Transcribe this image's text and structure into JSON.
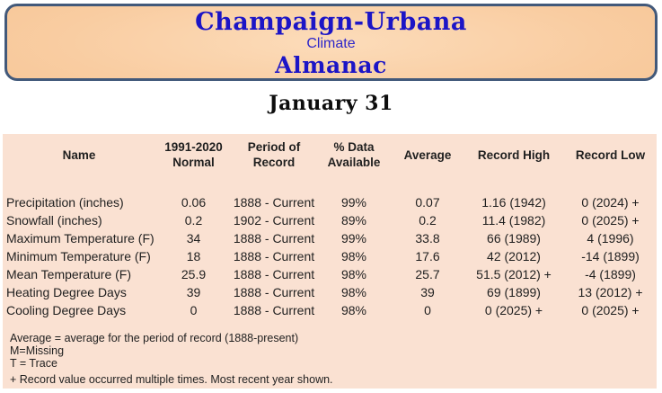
{
  "banner": {
    "title": "Champaign-Urbana",
    "subtitle": "Climate",
    "title2": "Almanac"
  },
  "date_heading": "January 31",
  "table": {
    "columns": [
      "Name",
      "1991-2020\nNormal",
      "Period of\nRecord",
      "% Data\nAvailable",
      "Average",
      "Record High",
      "Record Low"
    ],
    "rows": [
      {
        "name": "Precipitation (inches)",
        "normal": "0.06",
        "period": "1888 - Current",
        "pct": "99%",
        "avg": "0.07",
        "high": "1.16 (1942)",
        "low": "0 (2024) +"
      },
      {
        "name": "Snowfall (inches)",
        "normal": "0.2",
        "period": "1902 - Current",
        "pct": "89%",
        "avg": "0.2",
        "high": "11.4 (1982)",
        "low": "0 (2025) +"
      },
      {
        "name": "Maximum Temperature (F)",
        "normal": "34",
        "period": "1888 - Current",
        "pct": "99%",
        "avg": "33.8",
        "high": "66 (1989)",
        "low": "4 (1996)"
      },
      {
        "name": "Minimum Temperature (F)",
        "normal": "18",
        "period": "1888 - Current",
        "pct": "98%",
        "avg": "17.6",
        "high": "42 (2012)",
        "low": "-14 (1899)"
      },
      {
        "name": "Mean Temperature (F)",
        "normal": "25.9",
        "period": "1888 - Current",
        "pct": "98%",
        "avg": "25.7",
        "high": "51.5 (2012) +",
        "low": "-4 (1899)"
      },
      {
        "name": "Heating Degree Days",
        "normal": "39",
        "period": "1888 - Current",
        "pct": "98%",
        "avg": "39",
        "high": "69 (1899)",
        "low": "13 (2012) +"
      },
      {
        "name": "Cooling Degree Days",
        "normal": "0",
        "period": "1888 - Current",
        "pct": "98%",
        "avg": "0",
        "high": "0 (2025) +",
        "low": "0 (2025) +"
      }
    ]
  },
  "notes": [
    "Average = average for the period of record (1888-present)",
    "M=Missing",
    "T = Trace",
    "+ Record value occurred multiple times. Most recent year shown."
  ],
  "colors": {
    "banner_fill_edge": "#f6c08d",
    "banner_fill_center": "#fcdcba",
    "banner_border": "#42597a",
    "accent_blue": "#1c15c6",
    "subtitle_blue": "#2e26c9",
    "table_bg": "#fae1d2",
    "text": "#1f1f1f"
  }
}
